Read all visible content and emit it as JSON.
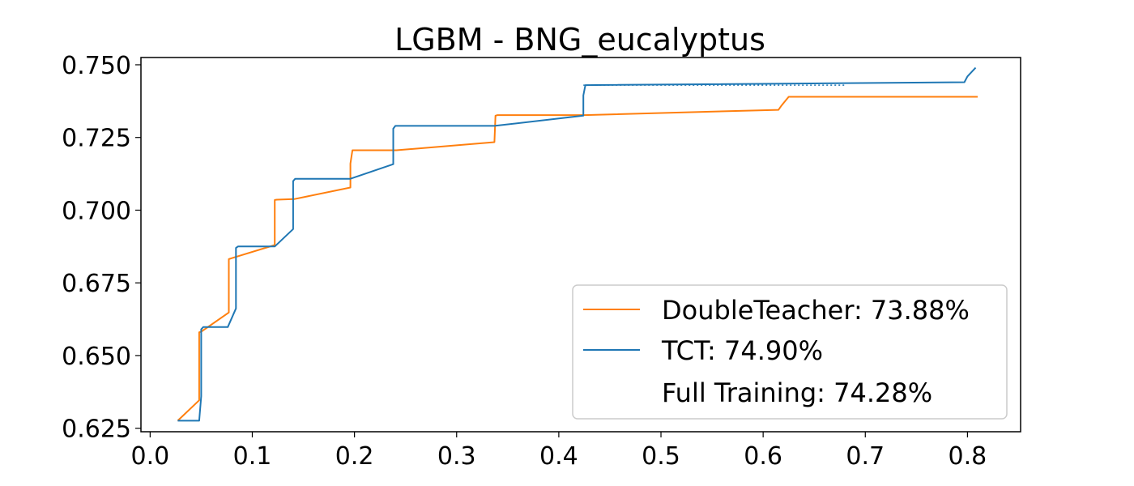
{
  "chart_data": {
    "type": "line",
    "title": "LGBM - BNG_eucalyptus",
    "xlabel": "",
    "ylabel": "",
    "xlim": [
      -0.009,
      0.852
    ],
    "ylim": [
      0.6238,
      0.7525
    ],
    "x_ticks": [
      0.0,
      0.1,
      0.2,
      0.3,
      0.4,
      0.5,
      0.6,
      0.7,
      0.8
    ],
    "x_tick_labels": [
      "0.0",
      "0.1",
      "0.2",
      "0.3",
      "0.4",
      "0.5",
      "0.6",
      "0.7",
      "0.8"
    ],
    "y_ticks": [
      0.625,
      0.65,
      0.675,
      0.7,
      0.725,
      0.75
    ],
    "y_tick_labels": [
      "0.625",
      "0.650",
      "0.675",
      "0.700",
      "0.725",
      "0.750"
    ],
    "grid": false,
    "legend_position": "lower-right",
    "series": [
      {
        "name": "DoubleTeacher: 73.88%",
        "color": "#ff7f0e",
        "style": "solid",
        "x": [
          0.027,
          0.048,
          0.048,
          0.05,
          0.077,
          0.077,
          0.079,
          0.122,
          0.122,
          0.124,
          0.141,
          0.196,
          0.196,
          0.198,
          0.241,
          0.337,
          0.338,
          0.34,
          0.425,
          0.615,
          0.618,
          0.625,
          0.81
        ],
        "y": [
          0.6276,
          0.6346,
          0.658,
          0.6582,
          0.6648,
          0.6832,
          0.6834,
          0.688,
          0.7035,
          0.7036,
          0.7038,
          0.7078,
          0.716,
          0.7206,
          0.7206,
          0.7234,
          0.7325,
          0.7327,
          0.7327,
          0.7345,
          0.736,
          0.739,
          0.739
        ]
      },
      {
        "name": "TCT: 74.90%",
        "color": "#1f77b4",
        "style": "solid",
        "x": [
          0.027,
          0.048,
          0.05,
          0.05,
          0.052,
          0.076,
          0.084,
          0.084,
          0.086,
          0.122,
          0.14,
          0.14,
          0.142,
          0.196,
          0.238,
          0.238,
          0.24,
          0.337,
          0.424,
          0.424,
          0.426,
          0.797,
          0.8,
          0.808
        ],
        "y": [
          0.6276,
          0.6276,
          0.636,
          0.659,
          0.6598,
          0.6598,
          0.6662,
          0.687,
          0.6875,
          0.6875,
          0.6935,
          0.71,
          0.7108,
          0.7108,
          0.7158,
          0.728,
          0.729,
          0.729,
          0.7325,
          0.7395,
          0.743,
          0.744,
          0.746,
          0.749
        ]
      },
      {
        "name": "Full Training: 74.28%",
        "color": "#1f77b4",
        "style": "dotted",
        "x": [
          0.424,
          0.68
        ],
        "y": [
          0.743,
          0.743
        ]
      }
    ]
  }
}
